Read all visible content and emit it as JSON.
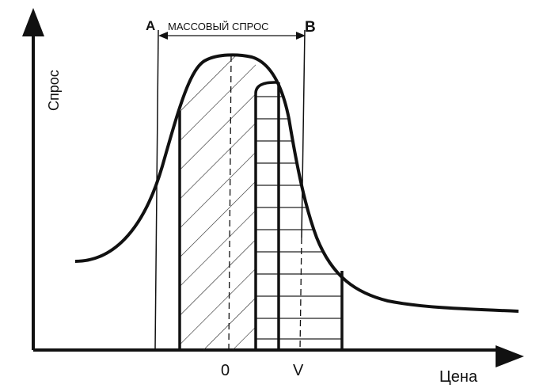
{
  "diagram": {
    "y_axis_label": "Спрос",
    "x_axis_label": "Цена",
    "label_a": "A",
    "label_b": "B",
    "range_label": "МАССОВЫЙ СПРОС",
    "tick_zero": "0",
    "tick_v": "V"
  },
  "colors": {
    "ink": "#111111",
    "background": "#ffffff"
  }
}
